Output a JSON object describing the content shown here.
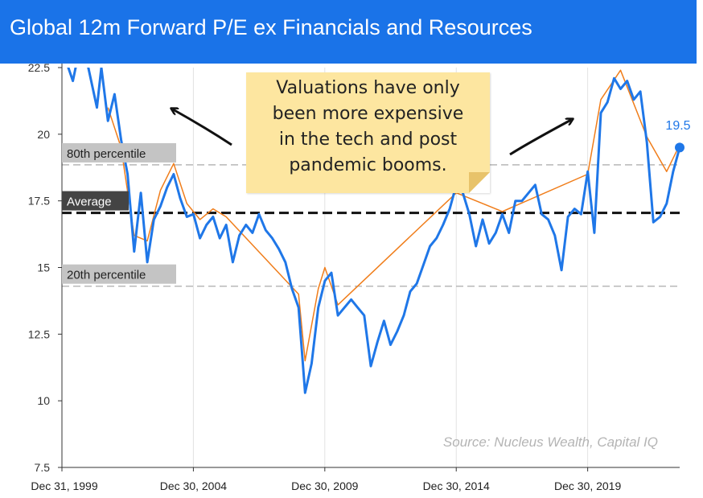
{
  "header": {
    "title": "Global 12m Forward P/E ex Financials and Resources"
  },
  "colors": {
    "banner": "#1a73e8",
    "series_blue": "#1f77e8",
    "series_orange": "#f07d1a",
    "callout": "#fde6a0"
  },
  "annotation": {
    "lines": [
      "Valuations have only",
      "been more expensive",
      "in the tech and post",
      "pandemic booms."
    ]
  },
  "source": "Source: Nucleus Wealth, Capital IQ",
  "chart_data": {
    "type": "line",
    "x_axis": {
      "type": "date",
      "min": "1999-12-31",
      "max": "2023-06-30",
      "ticks": [
        "Dec 31, 1999",
        "Dec 30, 2004",
        "Dec 30, 2009",
        "Dec 30, 2014",
        "Dec 30, 2019"
      ]
    },
    "y_axis": {
      "min": 7.5,
      "max": 22.5,
      "ticks": [
        "7.5",
        "10",
        "12.5",
        "15",
        "17.5",
        "20",
        "22.5"
      ]
    },
    "grid": "vertical",
    "reference_lines": [
      {
        "label": "80th percentile",
        "value": 18.85,
        "style": "dashed-grey"
      },
      {
        "label": "Average",
        "value": 17.05,
        "style": "dashed-black"
      },
      {
        "label": "20th percentile",
        "value": 14.3,
        "style": "dashed-grey"
      }
    ],
    "last_value_label": "19.5",
    "series": [
      {
        "color": "#1f77e8",
        "points": [
          [
            "1999-12-31",
            23.2
          ],
          [
            "2000-05-31",
            22.0
          ],
          [
            "2000-08-31",
            23.2
          ],
          [
            "2000-12-31",
            22.5
          ],
          [
            "2001-04-30",
            21.0
          ],
          [
            "2001-06-30",
            22.5
          ],
          [
            "2001-09-30",
            20.5
          ],
          [
            "2001-12-31",
            21.5
          ],
          [
            "2002-03-31",
            19.8
          ],
          [
            "2002-06-30",
            18.5
          ],
          [
            "2002-09-30",
            15.6
          ],
          [
            "2002-12-31",
            17.8
          ],
          [
            "2003-03-31",
            15.2
          ],
          [
            "2003-06-30",
            16.8
          ],
          [
            "2003-09-30",
            17.3
          ],
          [
            "2003-12-31",
            18.0
          ],
          [
            "2004-03-31",
            18.5
          ],
          [
            "2004-06-30",
            17.6
          ],
          [
            "2004-09-30",
            16.9
          ],
          [
            "2004-12-31",
            17.0
          ],
          [
            "2005-03-31",
            16.1
          ],
          [
            "2005-06-30",
            16.6
          ],
          [
            "2005-09-30",
            16.9
          ],
          [
            "2005-12-31",
            16.1
          ],
          [
            "2006-03-31",
            16.6
          ],
          [
            "2006-06-30",
            15.2
          ],
          [
            "2006-09-30",
            16.2
          ],
          [
            "2006-12-31",
            16.6
          ],
          [
            "2007-03-31",
            16.3
          ],
          [
            "2007-06-30",
            17.0
          ],
          [
            "2007-09-30",
            16.4
          ],
          [
            "2007-12-31",
            16.1
          ],
          [
            "2008-03-31",
            15.7
          ],
          [
            "2008-06-30",
            15.2
          ],
          [
            "2008-09-30",
            14.2
          ],
          [
            "2008-12-31",
            13.5
          ],
          [
            "2009-03-31",
            10.3
          ],
          [
            "2009-06-30",
            11.4
          ],
          [
            "2009-09-30",
            13.5
          ],
          [
            "2009-12-31",
            14.5
          ],
          [
            "2010-03-31",
            14.8
          ],
          [
            "2010-06-30",
            13.2
          ],
          [
            "2010-09-30",
            13.5
          ],
          [
            "2010-12-31",
            13.8
          ],
          [
            "2011-03-31",
            13.5
          ],
          [
            "2011-06-30",
            13.2
          ],
          [
            "2011-09-30",
            11.3
          ],
          [
            "2011-12-31",
            12.2
          ],
          [
            "2012-03-31",
            13.0
          ],
          [
            "2012-06-30",
            12.1
          ],
          [
            "2012-09-30",
            12.6
          ],
          [
            "2012-12-31",
            13.2
          ],
          [
            "2013-03-31",
            14.1
          ],
          [
            "2013-06-30",
            14.4
          ],
          [
            "2013-09-30",
            15.1
          ],
          [
            "2013-12-31",
            15.8
          ],
          [
            "2014-03-31",
            16.1
          ],
          [
            "2014-06-30",
            16.6
          ],
          [
            "2014-09-30",
            17.2
          ],
          [
            "2014-12-31",
            18.1
          ],
          [
            "2015-03-31",
            17.8
          ],
          [
            "2015-06-30",
            17.0
          ],
          [
            "2015-09-30",
            15.8
          ],
          [
            "2015-12-31",
            16.8
          ],
          [
            "2016-03-31",
            15.9
          ],
          [
            "2016-06-30",
            16.3
          ],
          [
            "2016-09-30",
            17.0
          ],
          [
            "2016-12-31",
            16.3
          ],
          [
            "2017-03-31",
            17.5
          ],
          [
            "2017-06-30",
            17.5
          ],
          [
            "2017-09-30",
            17.8
          ],
          [
            "2017-12-31",
            18.1
          ],
          [
            "2018-03-31",
            17.0
          ],
          [
            "2018-06-30",
            16.8
          ],
          [
            "2018-09-30",
            16.2
          ],
          [
            "2018-12-31",
            14.9
          ],
          [
            "2019-03-31",
            16.9
          ],
          [
            "2019-06-30",
            17.2
          ],
          [
            "2019-09-30",
            17.0
          ],
          [
            "2019-12-31",
            18.6
          ],
          [
            "2020-03-31",
            16.3
          ],
          [
            "2020-06-30",
            20.8
          ],
          [
            "2020-09-30",
            21.2
          ],
          [
            "2020-12-31",
            22.1
          ],
          [
            "2021-03-31",
            21.7
          ],
          [
            "2021-06-30",
            22.0
          ],
          [
            "2021-09-30",
            21.3
          ],
          [
            "2021-12-31",
            21.6
          ],
          [
            "2022-03-31",
            19.7
          ],
          [
            "2022-06-30",
            16.7
          ],
          [
            "2022-09-30",
            16.9
          ],
          [
            "2022-12-31",
            17.4
          ],
          [
            "2023-03-31",
            18.6
          ],
          [
            "2023-06-30",
            19.5
          ]
        ]
      },
      {
        "color": "#f07d1a",
        "points": [
          [
            "2001-09-30",
            21.0
          ],
          [
            "2002-03-31",
            19.5
          ],
          [
            "2002-09-30",
            16.2
          ],
          [
            "2003-03-31",
            16.0
          ],
          [
            "2003-09-30",
            17.9
          ],
          [
            "2004-03-31",
            18.9
          ],
          [
            "2004-09-30",
            17.4
          ],
          [
            "2005-03-31",
            16.8
          ],
          [
            "2005-09-30",
            17.2
          ],
          [
            "2006-03-31",
            16.9
          ],
          [
            "2008-12-31",
            14.0
          ],
          [
            "2009-03-31",
            11.5
          ],
          [
            "2009-09-30",
            14.2
          ],
          [
            "2009-12-31",
            15.0
          ],
          [
            "2010-06-30",
            13.6
          ],
          [
            "2014-12-31",
            17.8
          ],
          [
            "2016-09-30",
            17.1
          ],
          [
            "2019-12-31",
            18.5
          ],
          [
            "2020-06-30",
            21.3
          ],
          [
            "2021-03-31",
            22.4
          ],
          [
            "2022-03-31",
            19.9
          ],
          [
            "2022-12-31",
            18.6
          ],
          [
            "2023-06-30",
            19.6
          ]
        ]
      }
    ]
  }
}
